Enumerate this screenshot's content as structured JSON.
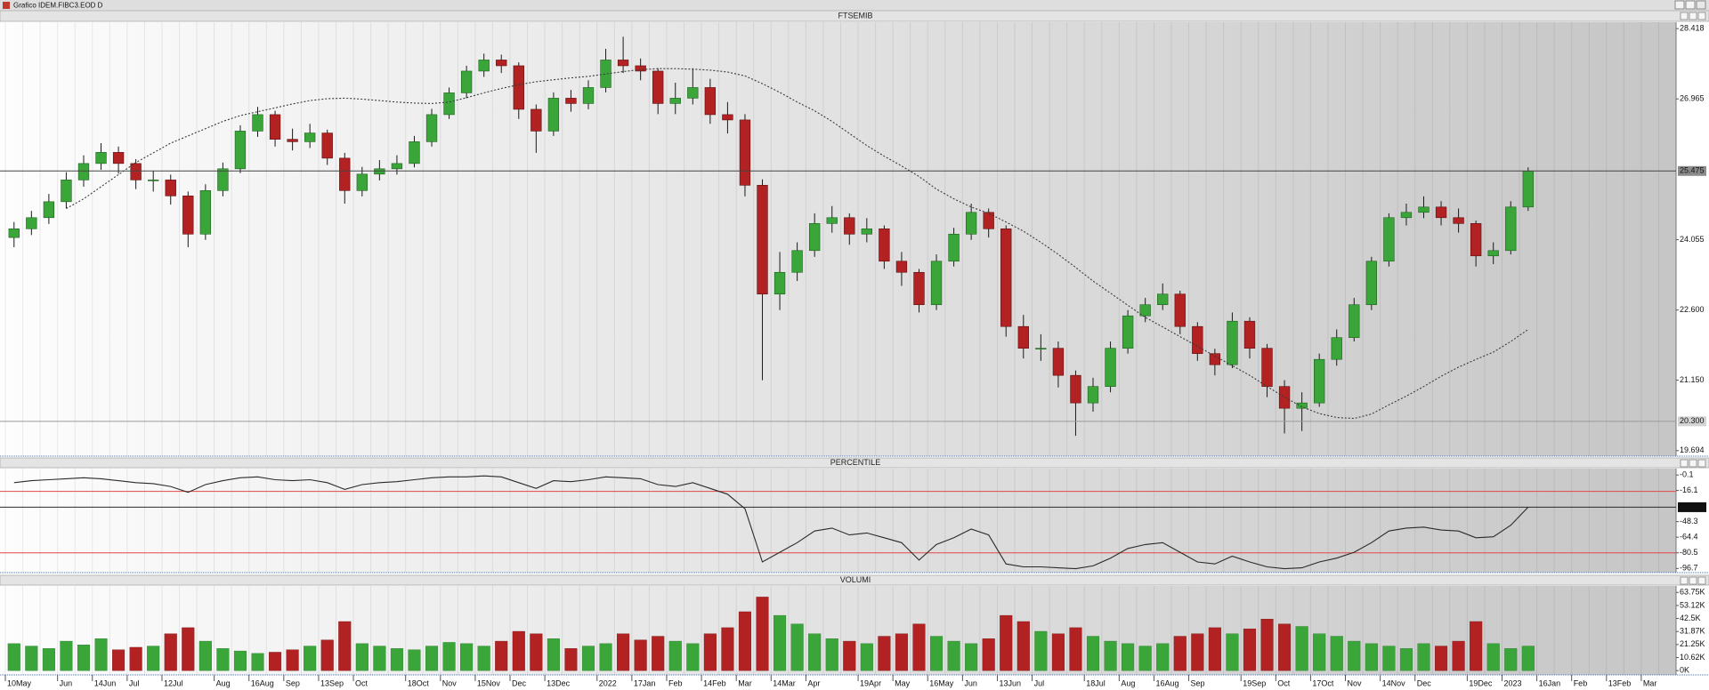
{
  "window": {
    "title": "Grafico IDEM.FIBC3.EOD D"
  },
  "chart_data": {
    "type": "candlestick",
    "title": "FTSEMIB",
    "categories": [
      "10May",
      null,
      null,
      "Jun",
      null,
      "14Jun",
      null,
      "Jul",
      null,
      "12Jul",
      null,
      null,
      "Aug",
      null,
      "16Aug",
      null,
      "Sep",
      null,
      "13Sep",
      null,
      "Oct",
      null,
      null,
      "18Oct",
      null,
      "Nov",
      null,
      "15Nov",
      null,
      "Dec",
      null,
      "13Dec",
      null,
      null,
      "2022",
      null,
      "17Jan",
      null,
      "Feb",
      null,
      "14Feb",
      null,
      "Mar",
      null,
      "14Mar",
      null,
      "Apr",
      null,
      null,
      "19Apr",
      null,
      "May",
      null,
      "16May",
      null,
      "Jun",
      null,
      "13Jun",
      null,
      "Jul",
      null,
      null,
      "18Jul",
      null,
      "Aug",
      null,
      "16Aug",
      null,
      "Sep",
      null,
      null,
      "19Sep",
      null,
      "Oct",
      null,
      "17Oct",
      null,
      "Nov",
      null,
      "14Nov",
      null,
      "Dec",
      null,
      null,
      "19Dec",
      null,
      "2023",
      null,
      "16Jan",
      null,
      "Feb",
      null,
      "13Feb",
      null,
      "Mar",
      null
    ],
    "open": [
      24100,
      24280,
      24510,
      24840,
      25290,
      25630,
      25860,
      25630,
      25290,
      25290,
      24960,
      24170,
      25070,
      25520,
      26300,
      26640,
      26130,
      26080,
      26260,
      25740,
      25070,
      25410,
      25520,
      25630,
      26080,
      26640,
      27090,
      27540,
      27770,
      27650,
      26750,
      26300,
      26980,
      26870,
      27200,
      27770,
      27650,
      27540,
      26870,
      26980,
      27200,
      26640,
      26530,
      25180,
      22930,
      23380,
      23830,
      24390,
      24510,
      24170,
      24280,
      23610,
      23380,
      22710,
      23610,
      24170,
      24620,
      24280,
      22260,
      21810,
      21810,
      21250,
      20680,
      21020,
      21810,
      22480,
      22710,
      22930,
      22260,
      21700,
      21470,
      22370,
      21810,
      21020,
      20570,
      20680,
      21580,
      22030,
      22710,
      23610,
      24510,
      24620,
      24730,
      24510,
      24390,
      23720,
      23830,
      24730,
      null,
      null,
      null,
      null,
      null,
      null,
      null,
      null
    ],
    "high": [
      24420,
      24650,
      25000,
      25450,
      25800,
      26050,
      25980,
      25720,
      25480,
      25400,
      25050,
      25200,
      25650,
      26420,
      26800,
      26720,
      26350,
      26450,
      26330,
      25850,
      25560,
      25700,
      25800,
      26200,
      26760,
      27200,
      27650,
      27900,
      27880,
      27720,
      26850,
      27100,
      27150,
      27350,
      28000,
      28250,
      27800,
      27600,
      27300,
      27600,
      27380,
      26900,
      26650,
      25300,
      23800,
      24000,
      24600,
      24750,
      24600,
      24500,
      24350,
      23800,
      23450,
      23750,
      24300,
      24800,
      24700,
      24350,
      22500,
      22100,
      21950,
      21350,
      21200,
      21950,
      22600,
      22850,
      23150,
      23000,
      22350,
      21800,
      22550,
      22450,
      21900,
      21150,
      20900,
      21700,
      22200,
      22850,
      23700,
      24600,
      24800,
      24950,
      24850,
      24700,
      24450,
      24000,
      24850,
      25550,
      null,
      null,
      null,
      null,
      null,
      null,
      null,
      null
    ],
    "low": [
      23900,
      24150,
      24380,
      24700,
      25150,
      25500,
      25420,
      25100,
      25050,
      24780,
      23900,
      24050,
      24950,
      25430,
      26180,
      25980,
      25900,
      25950,
      25600,
      24800,
      24950,
      25280,
      25400,
      25550,
      25980,
      26550,
      26980,
      27420,
      27500,
      26550,
      25850,
      26200,
      26700,
      26750,
      27100,
      27500,
      27350,
      26650,
      26650,
      26850,
      26450,
      26250,
      24950,
      21150,
      22600,
      23200,
      23700,
      24200,
      23950,
      24000,
      23450,
      23100,
      22550,
      22600,
      23500,
      24050,
      24100,
      22050,
      21600,
      21550,
      21000,
      20000,
      20500,
      20900,
      21700,
      22350,
      22600,
      22100,
      21550,
      21250,
      21400,
      21600,
      20800,
      20050,
      20100,
      20600,
      21450,
      21950,
      22600,
      23500,
      24350,
      24500,
      24350,
      24200,
      23500,
      23550,
      23750,
      24650,
      null,
      null,
      null,
      null,
      null,
      null,
      null,
      null
    ],
    "close": [
      24280,
      24510,
      24840,
      25290,
      25630,
      25860,
      25630,
      25290,
      25290,
      24960,
      24170,
      25070,
      25520,
      26300,
      26640,
      26130,
      26080,
      26260,
      25740,
      25070,
      25410,
      25520,
      25630,
      26080,
      26640,
      27090,
      27540,
      27770,
      27650,
      26750,
      26300,
      26980,
      26870,
      27200,
      27770,
      27650,
      27540,
      26870,
      26980,
      27200,
      26640,
      26530,
      25180,
      22930,
      23380,
      23830,
      24390,
      24510,
      24170,
      24280,
      23610,
      23380,
      22710,
      23610,
      24170,
      24620,
      24280,
      22260,
      21810,
      21810,
      21250,
      20680,
      21020,
      21810,
      22480,
      22710,
      22930,
      22260,
      21700,
      21470,
      22370,
      21810,
      21020,
      20570,
      20680,
      21580,
      22030,
      22710,
      23610,
      24510,
      24620,
      24730,
      24510,
      24390,
      23720,
      23830,
      24730,
      25475,
      null,
      null,
      null,
      null,
      null,
      null,
      null,
      null
    ],
    "up_color": "#3aa63a",
    "down_color": "#b22222",
    "ma": {
      "color": "#3a3a3a",
      "values": [
        null,
        null,
        null,
        24700,
        24900,
        25150,
        25400,
        25650,
        25850,
        26050,
        26200,
        26350,
        26500,
        26620,
        26700,
        26780,
        26860,
        26930,
        26970,
        26980,
        26960,
        26930,
        26900,
        26880,
        26870,
        26900,
        26990,
        27090,
        27180,
        27260,
        27320,
        27360,
        27400,
        27430,
        27480,
        27530,
        27570,
        27590,
        27590,
        27580,
        27560,
        27520,
        27440,
        27280,
        27100,
        26900,
        26720,
        26500,
        26250,
        26000,
        25780,
        25580,
        25360,
        25100,
        24900,
        24730,
        24600,
        24420,
        24230,
        24000,
        23750,
        23480,
        23200,
        22950,
        22700,
        22450,
        22250,
        22050,
        21850,
        21650,
        21450,
        21250,
        21020,
        20800,
        20600,
        20460,
        20380,
        20360,
        20450,
        20640,
        20820,
        21020,
        21230,
        21420,
        21580,
        21730,
        21950,
        22200,
        null,
        null,
        null,
        null,
        null,
        null,
        null,
        null
      ]
    },
    "ylim": [
      19580,
      28550
    ],
    "yticks": [
      {
        "value": 28418,
        "label": "28.418"
      },
      {
        "value": 26965,
        "label": "26.965"
      },
      {
        "value": 24055,
        "label": "24.055"
      },
      {
        "value": 22600,
        "label": "22.600"
      },
      {
        "value": 21150,
        "label": "21.150"
      },
      {
        "value": 19694,
        "label": "19.694"
      }
    ],
    "markers": [
      {
        "value": 25475,
        "label": "25.475",
        "color": "#444444",
        "box": "#8c8c8c",
        "text_color": "#ffffff"
      },
      {
        "value": 20300,
        "label": "20.300",
        "color": "#9a9a9a",
        "box": "#d4d4d4",
        "text_color": "#111111"
      }
    ],
    "indicators": [
      {
        "type": "line",
        "title": "PERCENTILE",
        "color": "#2a2a2a",
        "values": [
          -8,
          -6,
          -5,
          -4,
          -3,
          -4,
          -6,
          -8,
          -9,
          -12,
          -18,
          -10,
          -6,
          -3,
          -2,
          -5,
          -6,
          -5,
          -8,
          -15,
          -10,
          -8,
          -7,
          -5,
          -3,
          -2,
          -2,
          -1,
          -2,
          -8,
          -14,
          -6,
          -7,
          -5,
          -2,
          -3,
          -4,
          -10,
          -12,
          -8,
          -14,
          -20,
          -35,
          -90,
          -80,
          -70,
          -58,
          -55,
          -62,
          -60,
          -65,
          -70,
          -88,
          -72,
          -65,
          -56,
          -62,
          -92,
          -95,
          -95,
          -96,
          -97,
          -94,
          -86,
          -76,
          -72,
          -70,
          -80,
          -90,
          -92,
          -84,
          -90,
          -95,
          -97,
          -96,
          -90,
          -86,
          -80,
          -70,
          -58,
          -55,
          -54,
          -57,
          -58,
          -65,
          -64,
          -52,
          -33.4,
          null,
          null,
          null,
          null,
          null,
          null,
          null,
          null
        ],
        "ylim": [
          -101,
          6.5
        ],
        "yticks": [
          -0.1,
          -16.1,
          -48.3,
          -64.4,
          -80.5,
          -96.7
        ],
        "markers": [
          {
            "value": -33.4,
            "color": "#2a2a2a",
            "box": "#111111",
            "text_color": "#ffffff"
          }
        ],
        "hlines": [
          {
            "value": -17,
            "color": "#e04848"
          },
          {
            "value": -80.5,
            "color": "#e04848"
          }
        ]
      },
      {
        "type": "bar",
        "title": "VOLUMI",
        "values": [
          22000,
          20000,
          18000,
          24000,
          21000,
          26000,
          17000,
          19000,
          20000,
          30000,
          35000,
          24000,
          18000,
          16000,
          14000,
          15000,
          17000,
          20000,
          25000,
          40000,
          22000,
          20000,
          18000,
          17000,
          20000,
          23000,
          22000,
          20000,
          24000,
          32000,
          30000,
          26000,
          18000,
          20000,
          22000,
          30000,
          25000,
          28000,
          24000,
          22000,
          30000,
          35000,
          48000,
          60000,
          45000,
          38000,
          30000,
          26000,
          24000,
          22000,
          28000,
          30000,
          38000,
          28000,
          24000,
          22000,
          26000,
          45000,
          40000,
          32000,
          30000,
          35000,
          28000,
          24000,
          22000,
          20000,
          22000,
          28000,
          30000,
          35000,
          30000,
          34000,
          42000,
          38000,
          36000,
          30000,
          28000,
          24000,
          22000,
          20000,
          18000,
          22000,
          20000,
          24000,
          40000,
          22000,
          18000,
          20000,
          null,
          null,
          null,
          null,
          null,
          null,
          null,
          null
        ],
        "ylim": [
          -3500,
          69000
        ],
        "yticks": [
          {
            "value": 63750,
            "label": "63.75K"
          },
          {
            "value": 53120,
            "label": "53.12K"
          },
          {
            "value": 42500,
            "label": "42.5K"
          },
          {
            "value": 31870,
            "label": "31.87K"
          },
          {
            "value": 21250,
            "label": "21.25K"
          },
          {
            "value": 10620,
            "label": "10.62K"
          },
          {
            "value": 0,
            "label": "0K"
          }
        ]
      }
    ]
  }
}
